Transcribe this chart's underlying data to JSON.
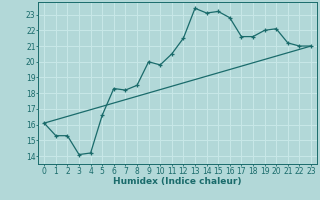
{
  "title": "",
  "xlabel": "Humidex (Indice chaleur)",
  "ylabel": "",
  "background_color": "#b2d8d8",
  "line_color": "#1a6b6b",
  "grid_color": "#c8e8e8",
  "curve1_x": [
    0,
    1,
    2,
    3,
    4,
    5,
    6,
    7,
    8,
    9,
    10,
    11,
    12,
    13,
    14,
    15,
    16,
    17,
    18,
    19,
    20,
    21,
    22,
    23
  ],
  "curve1_y": [
    16.1,
    15.3,
    15.3,
    14.1,
    14.2,
    16.6,
    18.3,
    18.2,
    18.5,
    20.0,
    19.8,
    20.5,
    21.5,
    23.4,
    23.1,
    23.2,
    22.8,
    21.6,
    21.6,
    22.0,
    22.1,
    21.2,
    21.0,
    21.0
  ],
  "curve2_x": [
    0,
    23
  ],
  "curve2_y": [
    16.1,
    21.0
  ],
  "xlim": [
    -0.5,
    23.5
  ],
  "ylim": [
    13.5,
    23.8
  ],
  "yticks": [
    14,
    15,
    16,
    17,
    18,
    19,
    20,
    21,
    22,
    23
  ],
  "xticks": [
    0,
    1,
    2,
    3,
    4,
    5,
    6,
    7,
    8,
    9,
    10,
    11,
    12,
    13,
    14,
    15,
    16,
    17,
    18,
    19,
    20,
    21,
    22,
    23
  ]
}
